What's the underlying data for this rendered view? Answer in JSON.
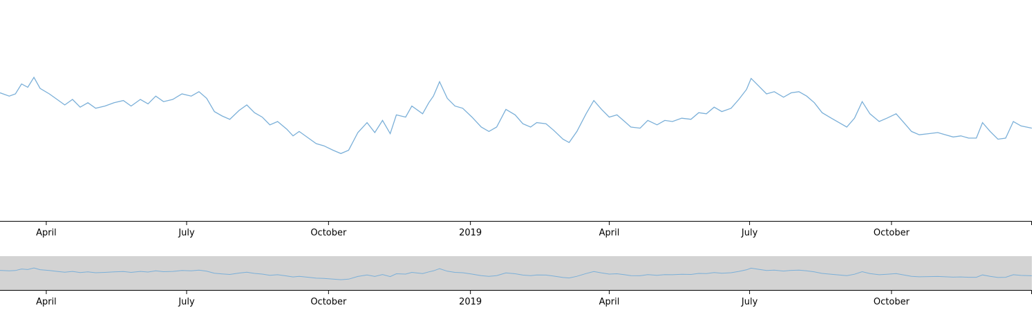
{
  "chart_data": {
    "type": "line",
    "title": "",
    "xlabel": "",
    "ylabel": "",
    "x_domain": [
      "2018-03-02",
      "2019-12-31"
    ],
    "ylim": [
      0,
      100
    ],
    "grid": false,
    "legend": "none",
    "line_color": "#7aafd8",
    "brush_fill": "#d3d3d3",
    "x_ticks": [
      {
        "date": "2018-04-01",
        "label": "April"
      },
      {
        "date": "2018-07-01",
        "label": "July"
      },
      {
        "date": "2018-10-01",
        "label": "October"
      },
      {
        "date": "2019-01-01",
        "label": "2019"
      },
      {
        "date": "2019-04-01",
        "label": "April"
      },
      {
        "date": "2019-07-01",
        "label": "July"
      },
      {
        "date": "2019-10-01",
        "label": "October"
      },
      {
        "date": "2020-01-01",
        "label": ""
      }
    ],
    "brush_selection": [
      "2018-03-02",
      "2019-12-31"
    ],
    "series": [
      {
        "points": [
          [
            "2018-03-02",
            58
          ],
          [
            "2018-03-08",
            56.5
          ],
          [
            "2018-03-12",
            57.5
          ],
          [
            "2018-03-16",
            62
          ],
          [
            "2018-03-20",
            60.5
          ],
          [
            "2018-03-24",
            65
          ],
          [
            "2018-03-28",
            60
          ],
          [
            "2018-04-03",
            57.5
          ],
          [
            "2018-04-08",
            55
          ],
          [
            "2018-04-13",
            52.5
          ],
          [
            "2018-04-18",
            55
          ],
          [
            "2018-04-23",
            51.5
          ],
          [
            "2018-04-28",
            53.5
          ],
          [
            "2018-05-03",
            51
          ],
          [
            "2018-05-09",
            52
          ],
          [
            "2018-05-15",
            53.5
          ],
          [
            "2018-05-21",
            54.5
          ],
          [
            "2018-05-26",
            52
          ],
          [
            "2018-06-01",
            55
          ],
          [
            "2018-06-06",
            53
          ],
          [
            "2018-06-11",
            56.5
          ],
          [
            "2018-06-16",
            54
          ],
          [
            "2018-06-22",
            55
          ],
          [
            "2018-06-28",
            57.5
          ],
          [
            "2018-07-04",
            56.5
          ],
          [
            "2018-07-09",
            58.5
          ],
          [
            "2018-07-14",
            55.5
          ],
          [
            "2018-07-19",
            49.5
          ],
          [
            "2018-07-24",
            47.5
          ],
          [
            "2018-07-29",
            46
          ],
          [
            "2018-08-04",
            50
          ],
          [
            "2018-08-09",
            52.5
          ],
          [
            "2018-08-14",
            49
          ],
          [
            "2018-08-19",
            47
          ],
          [
            "2018-08-24",
            43.5
          ],
          [
            "2018-08-29",
            45
          ],
          [
            "2018-09-04",
            41.5
          ],
          [
            "2018-09-08",
            38.5
          ],
          [
            "2018-09-12",
            40.5
          ],
          [
            "2018-09-18",
            37.5
          ],
          [
            "2018-09-23",
            35
          ],
          [
            "2018-09-28",
            34
          ],
          [
            "2018-10-04",
            32
          ],
          [
            "2018-10-09",
            30.5
          ],
          [
            "2018-10-14",
            32
          ],
          [
            "2018-10-20",
            40
          ],
          [
            "2018-10-26",
            44.5
          ],
          [
            "2018-10-31",
            40
          ],
          [
            "2018-11-05",
            45.5
          ],
          [
            "2018-11-10",
            39.5
          ],
          [
            "2018-11-14",
            48
          ],
          [
            "2018-11-20",
            47
          ],
          [
            "2018-11-24",
            52
          ],
          [
            "2018-12-01",
            48.5
          ],
          [
            "2018-12-05",
            53.5
          ],
          [
            "2018-12-08",
            56.5
          ],
          [
            "2018-12-12",
            63
          ],
          [
            "2018-12-17",
            55.5
          ],
          [
            "2018-12-22",
            52
          ],
          [
            "2018-12-27",
            51
          ],
          [
            "2019-01-02",
            47
          ],
          [
            "2019-01-08",
            42.5
          ],
          [
            "2019-01-13",
            40.5
          ],
          [
            "2019-01-18",
            42.5
          ],
          [
            "2019-01-24",
            50.5
          ],
          [
            "2019-01-30",
            48
          ],
          [
            "2019-02-04",
            44
          ],
          [
            "2019-02-09",
            42.5
          ],
          [
            "2019-02-13",
            44.5
          ],
          [
            "2019-02-19",
            44
          ],
          [
            "2019-02-24",
            41
          ],
          [
            "2019-03-02",
            37
          ],
          [
            "2019-03-06",
            35.5
          ],
          [
            "2019-03-11",
            40.5
          ],
          [
            "2019-03-17",
            48.5
          ],
          [
            "2019-03-22",
            54.5
          ],
          [
            "2019-03-27",
            50.5
          ],
          [
            "2019-04-01",
            47
          ],
          [
            "2019-04-06",
            48
          ],
          [
            "2019-04-11",
            45
          ],
          [
            "2019-04-15",
            42.5
          ],
          [
            "2019-04-21",
            42
          ],
          [
            "2019-04-26",
            45.5
          ],
          [
            "2019-05-02",
            43.5
          ],
          [
            "2019-05-07",
            45.5
          ],
          [
            "2019-05-12",
            45
          ],
          [
            "2019-05-18",
            46.5
          ],
          [
            "2019-05-24",
            46
          ],
          [
            "2019-05-29",
            49
          ],
          [
            "2019-06-03",
            48.5
          ],
          [
            "2019-06-08",
            51.5
          ],
          [
            "2019-06-13",
            49.5
          ],
          [
            "2019-06-19",
            51
          ],
          [
            "2019-06-24",
            55
          ],
          [
            "2019-06-29",
            59.5
          ],
          [
            "2019-07-02",
            64.5
          ],
          [
            "2019-07-07",
            61
          ],
          [
            "2019-07-12",
            57.5
          ],
          [
            "2019-07-17",
            58.5
          ],
          [
            "2019-07-23",
            56
          ],
          [
            "2019-07-28",
            58
          ],
          [
            "2019-08-02",
            58.5
          ],
          [
            "2019-08-07",
            56.5
          ],
          [
            "2019-08-12",
            53.5
          ],
          [
            "2019-08-17",
            49
          ],
          [
            "2019-08-23",
            46.5
          ],
          [
            "2019-08-28",
            44.5
          ],
          [
            "2019-09-02",
            42.5
          ],
          [
            "2019-09-07",
            46.5
          ],
          [
            "2019-09-12",
            54
          ],
          [
            "2019-09-17",
            48.5
          ],
          [
            "2019-09-23",
            45
          ],
          [
            "2019-09-28",
            46.5
          ],
          [
            "2019-10-04",
            48.5
          ],
          [
            "2019-10-09",
            44.5
          ],
          [
            "2019-10-14",
            40.5
          ],
          [
            "2019-10-19",
            39
          ],
          [
            "2019-10-25",
            39.5
          ],
          [
            "2019-10-31",
            40
          ],
          [
            "2019-11-05",
            39
          ],
          [
            "2019-11-10",
            38
          ],
          [
            "2019-11-15",
            38.5
          ],
          [
            "2019-11-20",
            37.5
          ],
          [
            "2019-11-25",
            37.5
          ],
          [
            "2019-11-29",
            44.5
          ],
          [
            "2019-12-04",
            40.5
          ],
          [
            "2019-12-09",
            37
          ],
          [
            "2019-12-14",
            37.5
          ],
          [
            "2019-12-19",
            45
          ],
          [
            "2019-12-24",
            43
          ],
          [
            "2019-12-31",
            42
          ]
        ]
      }
    ]
  }
}
